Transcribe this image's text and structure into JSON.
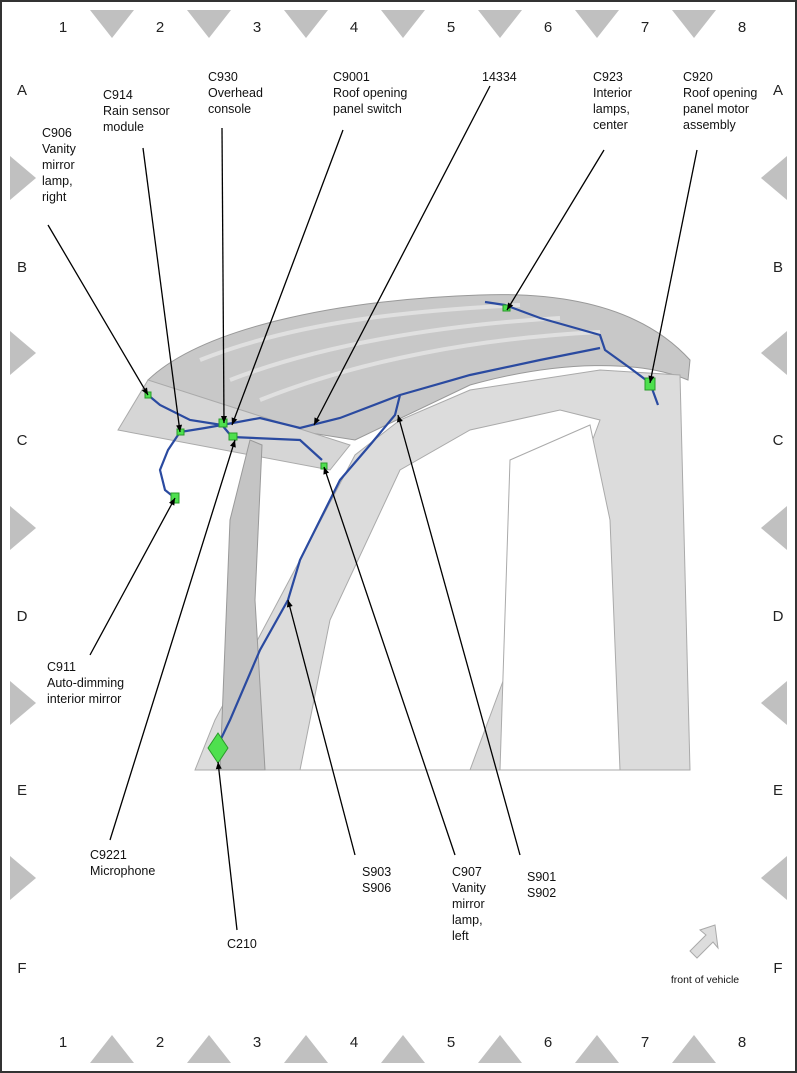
{
  "grid": {
    "columns": [
      "1",
      "2",
      "3",
      "4",
      "5",
      "6",
      "7",
      "8"
    ],
    "rows": [
      "A",
      "B",
      "C",
      "D",
      "E",
      "F"
    ]
  },
  "callouts": [
    {
      "lines": [
        "C906",
        "Vanity",
        "mirror",
        "lamp,",
        "right"
      ]
    },
    {
      "lines": [
        "C914",
        "Rain sensor",
        "module"
      ]
    },
    {
      "lines": [
        "C930",
        "Overhead",
        "console"
      ]
    },
    {
      "lines": [
        "C9001",
        "Roof opening",
        "panel switch"
      ]
    },
    {
      "lines": [
        "14334"
      ]
    },
    {
      "lines": [
        "C923",
        "Interior",
        "lamps,",
        "center"
      ]
    },
    {
      "lines": [
        "C920",
        "Roof opening",
        "panel motor",
        "assembly"
      ]
    },
    {
      "lines": [
        "C911",
        "Auto-dimming",
        "interior mirror"
      ]
    },
    {
      "lines": [
        "C9221",
        "Microphone"
      ]
    },
    {
      "lines": [
        "C210"
      ]
    },
    {
      "lines": [
        "S903",
        "S906"
      ]
    },
    {
      "lines": [
        "C907",
        "Vanity",
        "mirror",
        "lamp,",
        "left"
      ]
    },
    {
      "lines": [
        "S901",
        "S902"
      ]
    }
  ],
  "front_label": "front of vehicle"
}
